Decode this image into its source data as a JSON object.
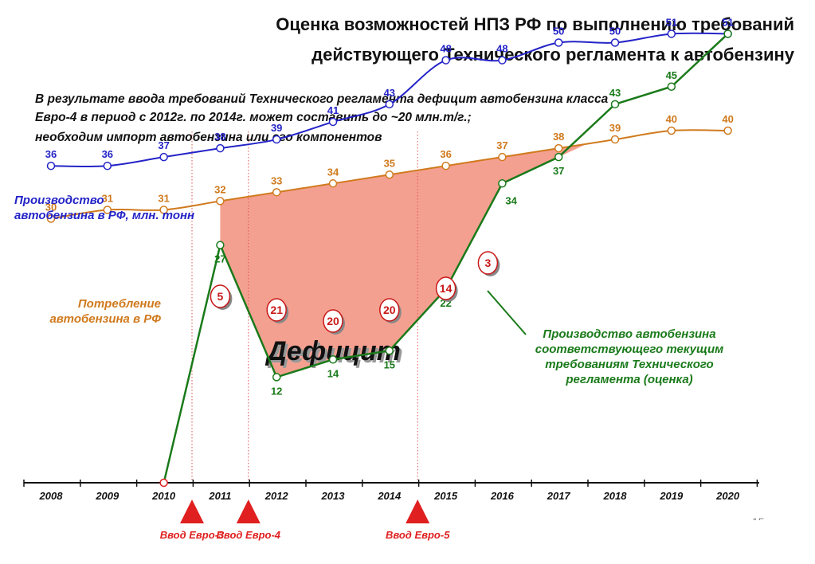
{
  "title_line1": "Оценка возможностей НПЗ РФ по выполнению требований",
  "title_line2": "действующего Технического регламента к автобензину",
  "subtitle_line1": "В результате ввода требований Технического регламента дефицит автобензина класса",
  "subtitle_line2": "Евро-4 в период с 2012г. по 2014г. может составить до ~20 млн.т/г.;",
  "subtitle_line3": "необходим импорт автобензина или его компонентов",
  "labels": {
    "production_l1": "Производство",
    "production_l2": "автобензина в РФ,  млн. тонн",
    "consumption_l1": "Потребление",
    "consumption_l2": "автобензина в РФ",
    "compliant_l1": "Производство автобензина",
    "compliant_l2": "соответствующего текущим",
    "compliant_l3": "требованиям Технического",
    "compliant_l4": "регламента (оценка)",
    "deficit": "Дефицит"
  },
  "colors": {
    "production": "#2424c8",
    "consumption": "#d07a1e",
    "compliant": "#1a7a1a",
    "deficit_fill": "#f4a090",
    "marker_red": "#e02020",
    "badge": "#c81818"
  },
  "chart_data": {
    "type": "line",
    "x": [
      2008,
      2009,
      2010,
      2011,
      2012,
      2013,
      2014,
      2015,
      2016,
      2017,
      2018,
      2019,
      2020
    ],
    "categories": [
      "2008",
      "2009",
      "2010",
      "2011",
      "2012",
      "2013",
      "2014",
      "2015",
      "2016",
      "2017",
      "2018",
      "2019",
      "2020"
    ],
    "series": [
      {
        "key": "production",
        "values": [
          36,
          36,
          37,
          38,
          39,
          41,
          43,
          48,
          48,
          50,
          50,
          51,
          51
        ]
      },
      {
        "key": "consumption",
        "values": [
          30,
          31,
          31,
          32,
          33,
          34,
          35,
          36,
          37,
          38,
          39,
          40,
          40
        ]
      },
      {
        "key": "compliant",
        "values": [
          null,
          null,
          0,
          27,
          12,
          14,
          15,
          22,
          34,
          37,
          43,
          45,
          51
        ]
      }
    ],
    "deficit_badges": [
      {
        "x": 2011,
        "value": 5
      },
      {
        "x": 2012,
        "value": 21
      },
      {
        "x": 2013,
        "value": 20
      },
      {
        "x": 2014,
        "value": 20
      },
      {
        "x": 2015,
        "value": 14
      },
      {
        "x": 2016,
        "value": 3
      }
    ],
    "events": [
      {
        "x": 2010.5,
        "label": "Ввод Евро-3"
      },
      {
        "x": 2011.5,
        "label": "Ввод Евро-4"
      },
      {
        "x": 2014.5,
        "label": "Ввод Евро-5"
      }
    ],
    "page_number": "15"
  }
}
